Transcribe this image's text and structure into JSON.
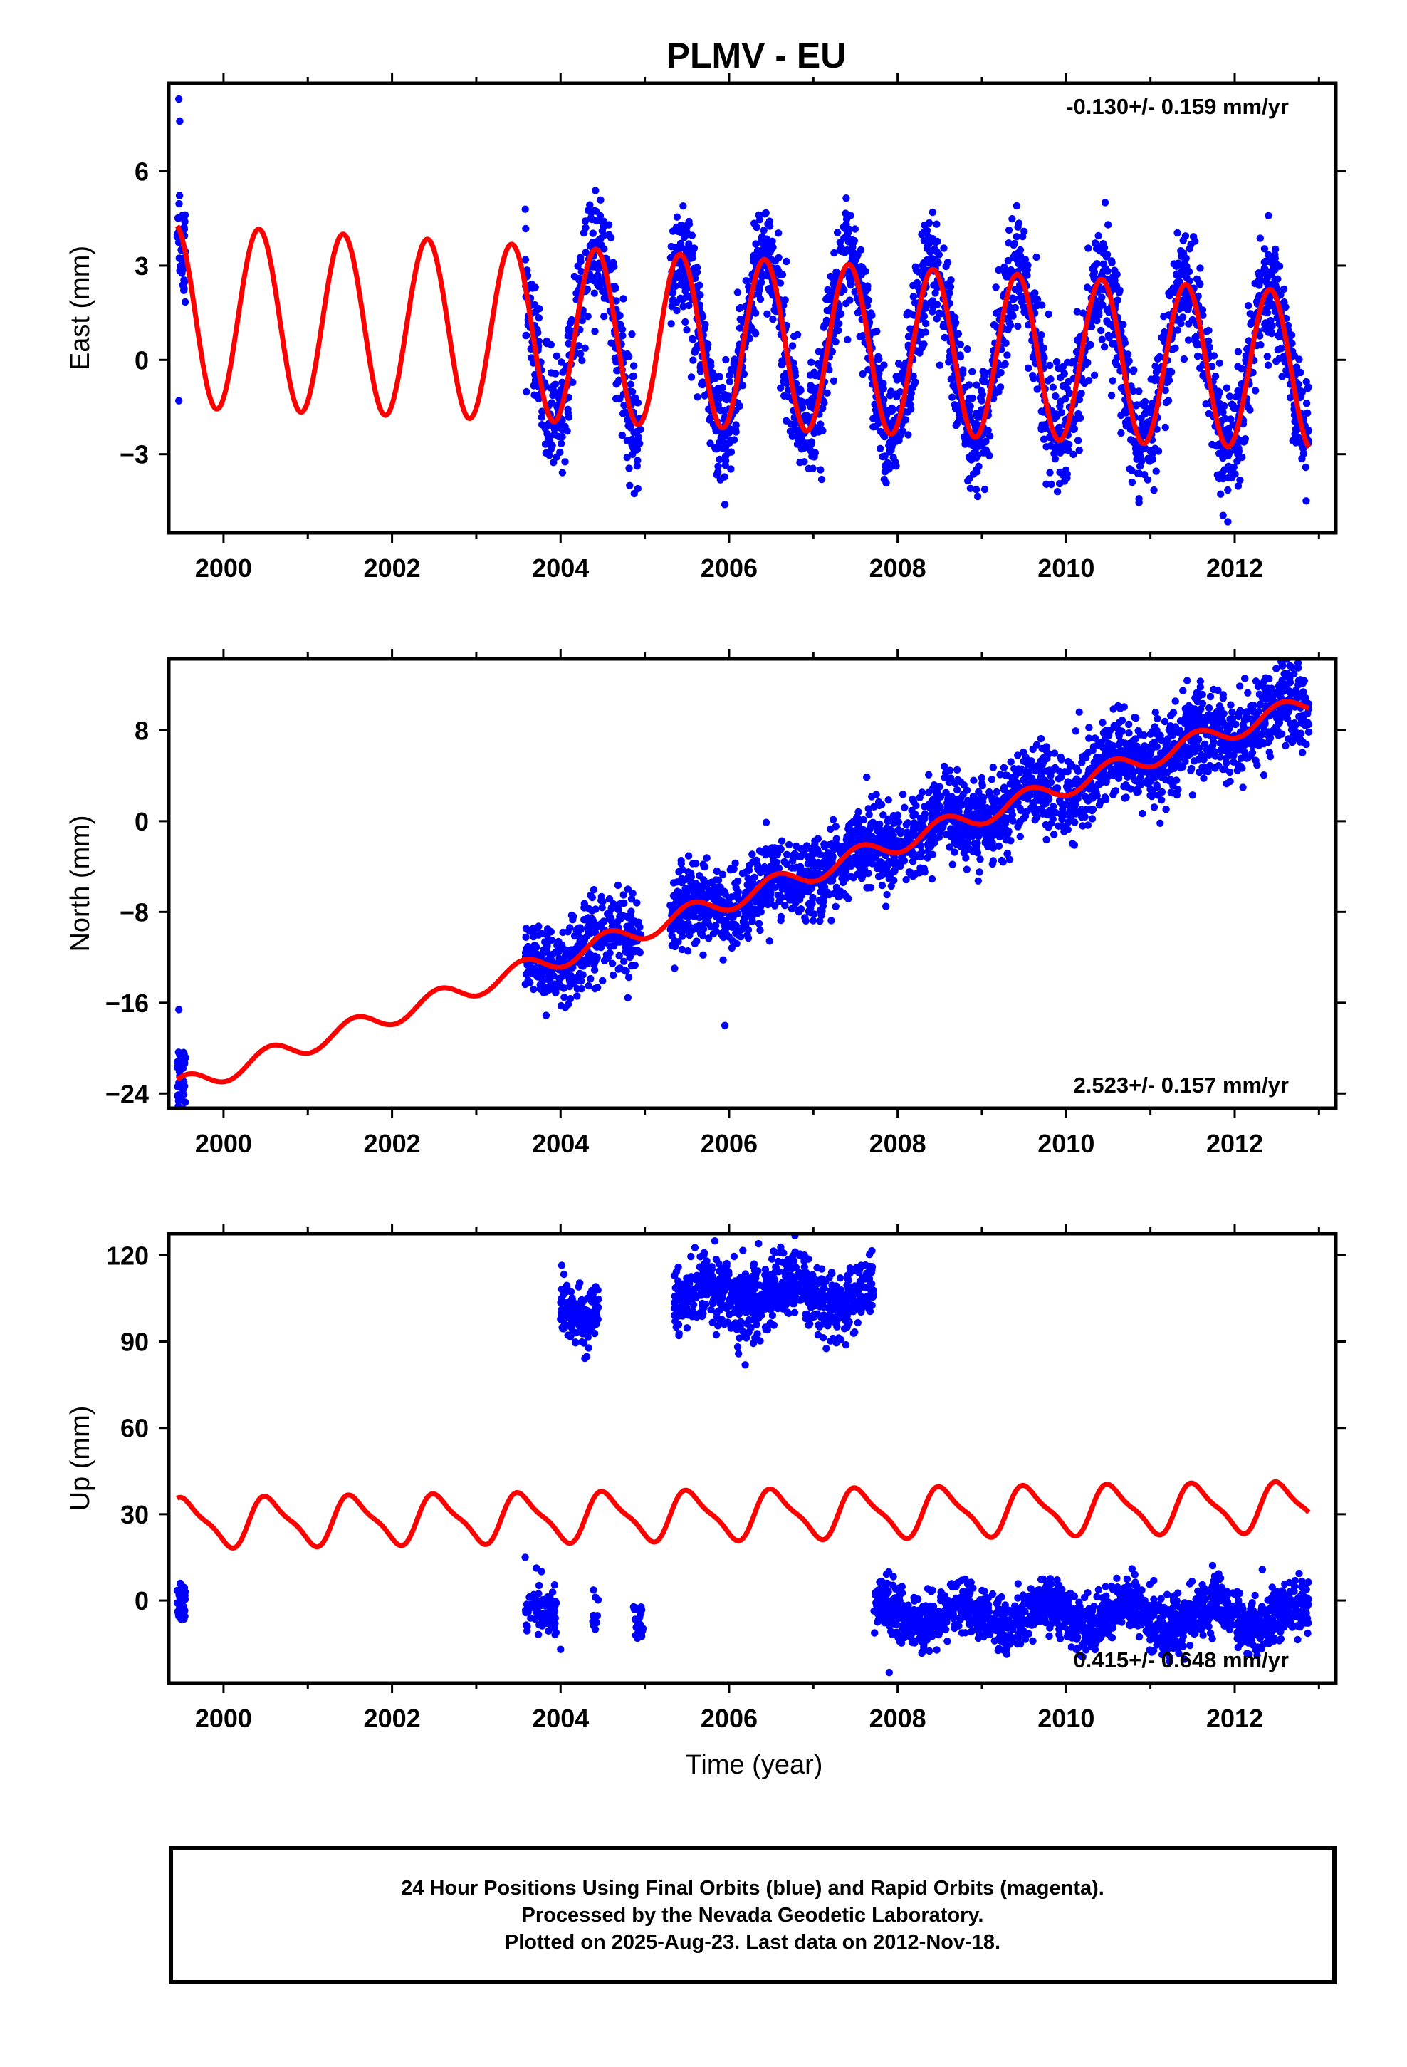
{
  "title": "PLMV - EU",
  "x_ticks": [
    "2000",
    "2002",
    "2004",
    "2006",
    "2008",
    "2010",
    "2012"
  ],
  "x_label": "Time (year)",
  "colors": {
    "data": "#0000ff",
    "model": "#ff0000",
    "frame": "#000000"
  },
  "caption": [
    "24 Hour Positions Using Final Orbits (blue) and Rapid Orbits (magenta).",
    "Processed by the Nevada Geodetic Laboratory.",
    "Plotted on 2025-Aug-23. Last data on 2012-Nov-18."
  ],
  "chart_data": [
    {
      "type": "scatter",
      "name": "east",
      "ylabel": "East (mm)",
      "y_ticks": [
        -3,
        0,
        3,
        6
      ],
      "y_tick_labels": [
        "−3",
        "0",
        "3",
        "6"
      ],
      "xlim": [
        1999.35,
        2013.2
      ],
      "ylim": [
        -5.5,
        8.8
      ],
      "rate_label": "-0.130+/- 0.159 mm/yr",
      "rate_position": "top-right",
      "series": [
        {
          "name": "daily positions",
          "style": "points",
          "color": "#0000ff",
          "segments": [
            {
              "start": 1999.45,
              "end": 1999.55,
              "count": 40
            },
            {
              "start": 2003.58,
              "end": 2004.95,
              "count": 400
            },
            {
              "start": 2005.3,
              "end": 2012.88,
              "count": 2500
            }
          ],
          "outliers": [
            [
              1999.47,
              8.3
            ],
            [
              1999.48,
              7.6
            ],
            [
              1999.47,
              -1.3
            ],
            [
              2004.82,
              -4.0
            ],
            [
              2005.95,
              -4.6
            ]
          ]
        },
        {
          "name": "model",
          "style": "line",
          "color": "#ff0000",
          "x_range": [
            1999.45,
            2012.88
          ],
          "offset": 1.4,
          "rate": -0.13,
          "annual_amplitude": 2.9,
          "annual_phase_year": 2000.42,
          "amp_change_per_yr": -0.03
        }
      ]
    },
    {
      "type": "scatter",
      "name": "north",
      "ylabel": "North (mm)",
      "y_ticks": [
        -24,
        -16,
        -8,
        0,
        8
      ],
      "y_tick_labels": [
        "−24",
        "−16",
        "−8",
        "0",
        "8"
      ],
      "xlim": [
        1999.35,
        2013.2
      ],
      "ylim": [
        -25.3,
        14.3
      ],
      "rate_label": "2.523+/- 0.157 mm/yr",
      "rate_position": "bottom-right",
      "series": [
        {
          "name": "daily positions",
          "style": "points",
          "color": "#0000ff",
          "segments": [
            {
              "start": 1999.45,
              "end": 1999.55,
              "count": 40
            },
            {
              "start": 2003.58,
              "end": 2004.95,
              "count": 400
            },
            {
              "start": 2005.3,
              "end": 2012.88,
              "count": 2500
            }
          ],
          "outliers": [
            [
              1999.47,
              -16.6
            ],
            [
              1999.5,
              -24.5
            ],
            [
              2005.95,
              -18.0
            ],
            [
              2004.8,
              -6.0
            ]
          ]
        },
        {
          "name": "model",
          "style": "line",
          "color": "#ff0000",
          "x_range": [
            1999.45,
            2012.88
          ],
          "offset": -23.5,
          "rate": 2.523,
          "annual_amplitude": 0.9,
          "annual_phase_year": 2000.55,
          "amp_change_per_yr": 0.0
        }
      ]
    },
    {
      "type": "scatter",
      "name": "up",
      "ylabel": "Up (mm)",
      "y_ticks": [
        0,
        30,
        60,
        90,
        120
      ],
      "y_tick_labels": [
        "0",
        "30",
        "60",
        "90",
        "120"
      ],
      "xlim": [
        1999.35,
        2013.2
      ],
      "ylim": [
        -28.7,
        127.5
      ],
      "rate_label": "0.415+/- 0.648 mm/yr",
      "rate_position": "bottom-right",
      "series": [
        {
          "name": "daily positions",
          "style": "points",
          "color": "#0000ff",
          "segments": [
            {
              "start": 1999.45,
              "end": 1999.55,
              "count": 40,
              "level": 0,
              "spread": 4
            },
            {
              "start": 2003.58,
              "end": 2003.95,
              "count": 80,
              "level": -5,
              "spread": 5
            },
            {
              "start": 2004.0,
              "end": 2004.45,
              "count": 140,
              "level": 102,
              "spread": 5
            },
            {
              "start": 2004.38,
              "end": 2004.45,
              "count": 12,
              "level": -3,
              "spread": 4
            },
            {
              "start": 2004.85,
              "end": 2004.98,
              "count": 25,
              "level": -10,
              "spread": 4
            },
            {
              "start": 2005.35,
              "end": 2007.72,
              "count": 800,
              "level": 106,
              "spread": 6
            },
            {
              "start": 2007.72,
              "end": 2012.88,
              "count": 1700,
              "level": -5,
              "spread": 4.5
            }
          ],
          "outliers": [
            [
              2003.58,
              15.0
            ],
            [
              2006.35,
              124.0
            ],
            [
              2007.9,
              -25.0
            ],
            [
              2004.0,
              -17.0
            ]
          ]
        },
        {
          "name": "model",
          "style": "line",
          "color": "#ff0000",
          "x_range": [
            1999.45,
            2012.88
          ],
          "offset": 27,
          "rate": 0.415,
          "annual_amplitude": 8,
          "annual_phase_year": 2000.55,
          "semiannual_amplitude": 2.2,
          "semiannual_phase_year": 2000.42,
          "amp_change_per_yr": 0.0
        }
      ]
    }
  ]
}
